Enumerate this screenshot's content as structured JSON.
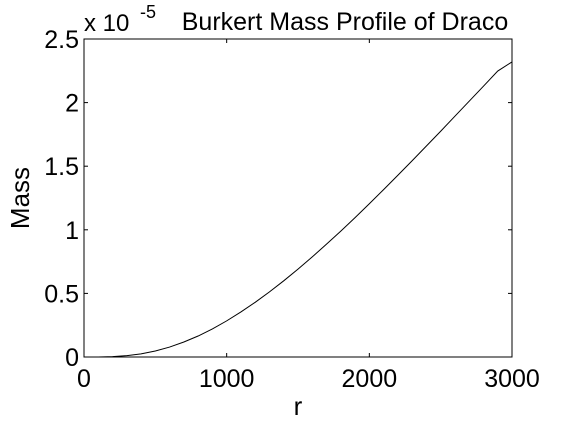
{
  "chart_data": {
    "type": "line",
    "title": "Burkert Mass Profile of Draco",
    "xlabel": "r",
    "ylabel": "Mass",
    "exponent_label": "x 10",
    "exponent_power": "-5",
    "xlim": [
      0,
      3000
    ],
    "ylim": [
      0,
      2.5
    ],
    "xticks": [
      0,
      1000,
      2000,
      3000
    ],
    "xtick_labels": [
      "0",
      "1000",
      "2000",
      "3000"
    ],
    "yticks": [
      0,
      0.5,
      1,
      1.5,
      2,
      2.5
    ],
    "ytick_labels": [
      "0",
      "0.5",
      "1",
      "1.5",
      "2",
      "2.5"
    ],
    "grid": false,
    "series": [
      {
        "color": "#000000",
        "x": [
          0,
          100,
          200,
          300,
          400,
          500,
          600,
          700,
          800,
          900,
          1000,
          1100,
          1200,
          1300,
          1400,
          1500,
          1600,
          1700,
          1800,
          1900,
          2000,
          2100,
          2200,
          2300,
          2400,
          2500,
          2600,
          2700,
          2800,
          2900,
          3000
        ],
        "y": [
          0,
          0.0004,
          0.0032,
          0.011,
          0.025,
          0.047,
          0.078,
          0.118,
          0.165,
          0.221,
          0.284,
          0.354,
          0.43,
          0.512,
          0.599,
          0.691,
          0.787,
          0.887,
          0.99,
          1.096,
          1.205,
          1.316,
          1.429,
          1.543,
          1.659,
          1.775,
          1.893,
          2.011,
          2.129,
          2.248,
          2.32
        ]
      }
    ]
  }
}
